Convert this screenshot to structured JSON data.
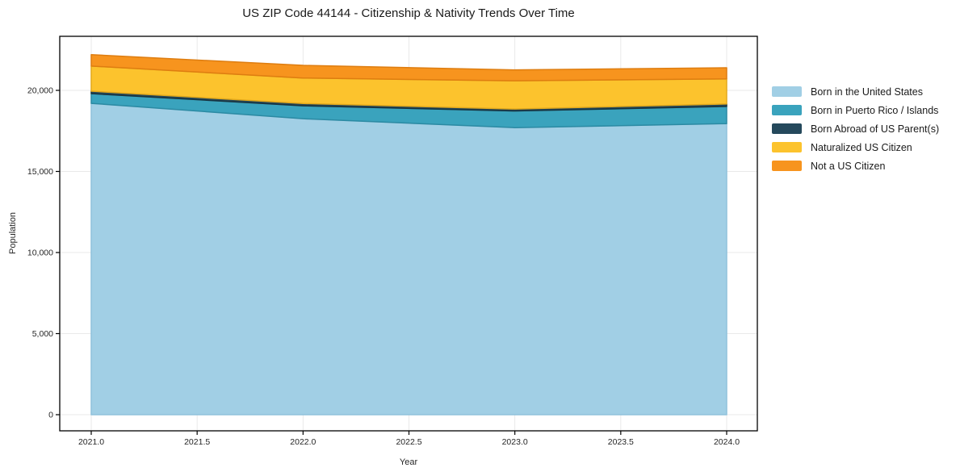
{
  "chart_data": {
    "type": "area",
    "stacked": true,
    "title": "US ZIP Code 44144 - Citizenship & Nativity Trends Over Time",
    "xlabel": "Year",
    "ylabel": "Population",
    "x": [
      2021,
      2022,
      2023,
      2024
    ],
    "series": [
      {
        "name": "Born in the United States",
        "color": "#a1cfe5",
        "edge_color": "#8fc2dc",
        "values": [
          19200,
          18250,
          17700,
          17950
        ]
      },
      {
        "name": "Born in Puerto Rico / Islands",
        "color": "#3aa3bd",
        "edge_color": "#2b8aa3",
        "values": [
          600,
          800,
          1030,
          1060
        ]
      },
      {
        "name": "Born Abroad of US Parent(s)",
        "color": "#25495c",
        "edge_color": "#18333f",
        "values": [
          150,
          140,
          120,
          150
        ]
      },
      {
        "name": "Naturalized US Citizen",
        "color": "#fcc32d",
        "edge_color": "#e3a91c",
        "values": [
          1550,
          1570,
          1740,
          1550
        ]
      },
      {
        "name": "Not a US Citizen",
        "color": "#f7941e",
        "edge_color": "#de7d10",
        "values": [
          700,
          780,
          670,
          680
        ]
      }
    ],
    "x_ticks": [
      {
        "value": 2021.0,
        "label": "2021.0"
      },
      {
        "value": 2021.5,
        "label": "2021.5"
      },
      {
        "value": 2022.0,
        "label": "2022.0"
      },
      {
        "value": 2022.5,
        "label": "2022.5"
      },
      {
        "value": 2023.0,
        "label": "2023.0"
      },
      {
        "value": 2023.5,
        "label": "2023.5"
      },
      {
        "value": 2024.0,
        "label": "2024.0"
      }
    ],
    "y_ticks": [
      {
        "value": 0,
        "label": "0"
      },
      {
        "value": 5000,
        "label": "5,000"
      },
      {
        "value": 10000,
        "label": "10,000"
      },
      {
        "value": 15000,
        "label": "15,000"
      },
      {
        "value": 20000,
        "label": "20,000"
      }
    ],
    "xlim": [
      2020.85,
      2024.14
    ],
    "ylim": [
      0,
      23333
    ],
    "grid": true,
    "grid_color": "#e9e9e9",
    "legend_position": "right"
  }
}
